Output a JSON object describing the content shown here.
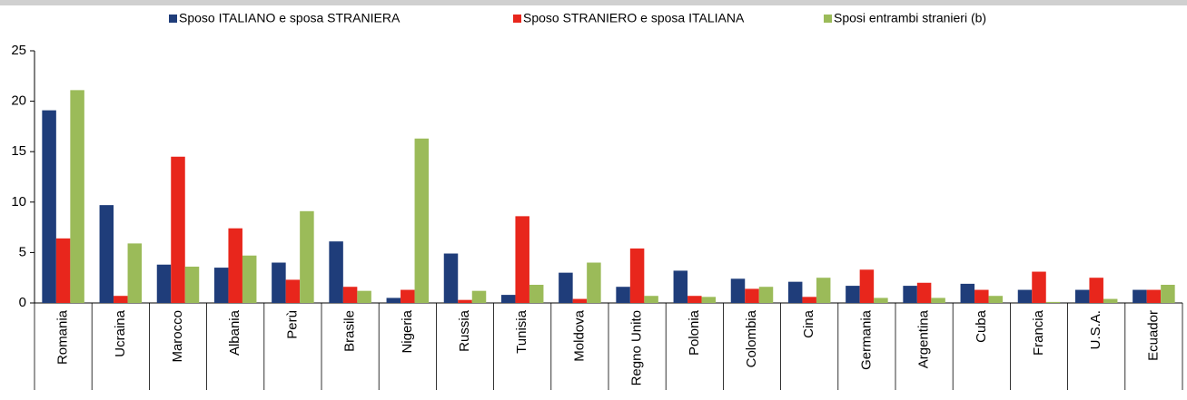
{
  "chart_data": {
    "type": "bar",
    "categories": [
      "Romania",
      "Ucraina",
      "Marocco",
      "Albania",
      "Perù",
      "Brasile",
      "Nigeria",
      "Russia",
      "Tunisia",
      "Moldova",
      "Regno Unito",
      "Polonia",
      "Colombia",
      "Cina",
      "Germania",
      "Argentina",
      "Cuba",
      "Francia",
      "U.S.A.",
      "Ecuador"
    ],
    "series": [
      {
        "name": "Sposo ITALIANO  e sposa STRANIERA",
        "color": "#1f3d7a",
        "values": [
          19.1,
          9.7,
          3.8,
          3.5,
          4.0,
          6.1,
          0.5,
          4.9,
          0.8,
          3.0,
          1.6,
          3.2,
          2.4,
          2.1,
          1.7,
          1.7,
          1.9,
          1.3,
          1.3,
          1.3
        ]
      },
      {
        "name": "Sposo STRANIERO e sposa ITALIANA",
        "color": "#e8261c",
        "values": [
          6.4,
          0.7,
          14.5,
          7.4,
          2.3,
          1.6,
          1.3,
          0.3,
          8.6,
          0.4,
          5.4,
          0.7,
          1.4,
          0.6,
          3.3,
          2.0,
          1.3,
          3.1,
          2.5,
          1.3
        ]
      },
      {
        "name": "Sposi entrambi stranieri (b)",
        "color": "#9bbb59",
        "values": [
          21.1,
          5.9,
          3.6,
          4.7,
          9.1,
          1.2,
          16.3,
          1.2,
          1.8,
          4.0,
          0.7,
          0.6,
          1.6,
          2.5,
          0.5,
          0.5,
          0.7,
          0.1,
          0.4,
          1.8
        ]
      }
    ],
    "ylim": [
      0,
      25
    ],
    "yticks": [
      0,
      5,
      10,
      15,
      20,
      25
    ],
    "grid": false,
    "legend": "top"
  }
}
